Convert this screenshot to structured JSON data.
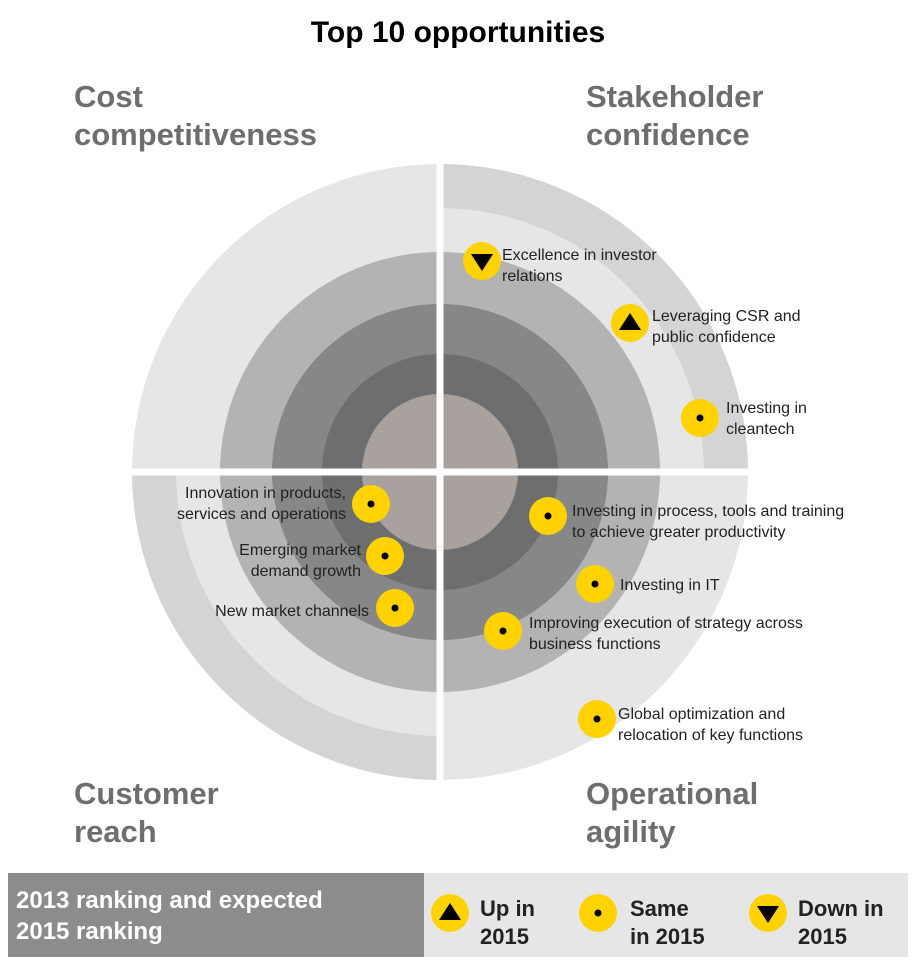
{
  "title": "Top 10 opportunities",
  "quadrants": {
    "top_left": "Cost\ncompetitiveness",
    "top_right": "Stakeholder\nconfidence",
    "bottom_left": "Customer\nreach",
    "bottom_right": "Operational\nagility"
  },
  "opportunities": [
    {
      "label": "Excellence in investor\nrelations",
      "status": "down",
      "quadrant": "Stakeholder confidence"
    },
    {
      "label": "Leveraging CSR and\npublic confidence",
      "status": "up",
      "quadrant": "Stakeholder confidence"
    },
    {
      "label": "Investing in\ncleantech",
      "status": "same",
      "quadrant": "Stakeholder confidence"
    },
    {
      "label": "Innovation in products,\nservices and operations",
      "status": "same",
      "quadrant": "Customer reach"
    },
    {
      "label": "Emerging market\ndemand growth",
      "status": "same",
      "quadrant": "Customer reach"
    },
    {
      "label": "New market channels",
      "status": "same",
      "quadrant": "Customer reach"
    },
    {
      "label": "Investing in process, tools and training\nto achieve greater productivity",
      "status": "same",
      "quadrant": "Operational agility"
    },
    {
      "label": "Investing in IT",
      "status": "same",
      "quadrant": "Operational agility"
    },
    {
      "label": "Improving execution of strategy across\nbusiness functions",
      "status": "same",
      "quadrant": "Operational agility"
    },
    {
      "label": "Global optimization and\nrelocation of key functions",
      "status": "same",
      "quadrant": "Operational agility"
    }
  ],
  "legend": {
    "heading": "2013 ranking and expected\n2015 ranking",
    "items": [
      {
        "status": "up",
        "label": "Up in\n2015"
      },
      {
        "status": "same",
        "label": "Same\nin 2015"
      },
      {
        "status": "down",
        "label": "Down in\n2015"
      }
    ]
  },
  "colors": {
    "marker": "#ffd200",
    "ring_outer_light": "#e6e6e6",
    "ring_outer_dark": "#d4d4d4",
    "ring_2": "#b3b3b3",
    "ring_3": "#878787",
    "ring_4": "#6e6e6e",
    "ring_center": "#a8a19d",
    "quadrant_label": "#6d6e70"
  }
}
